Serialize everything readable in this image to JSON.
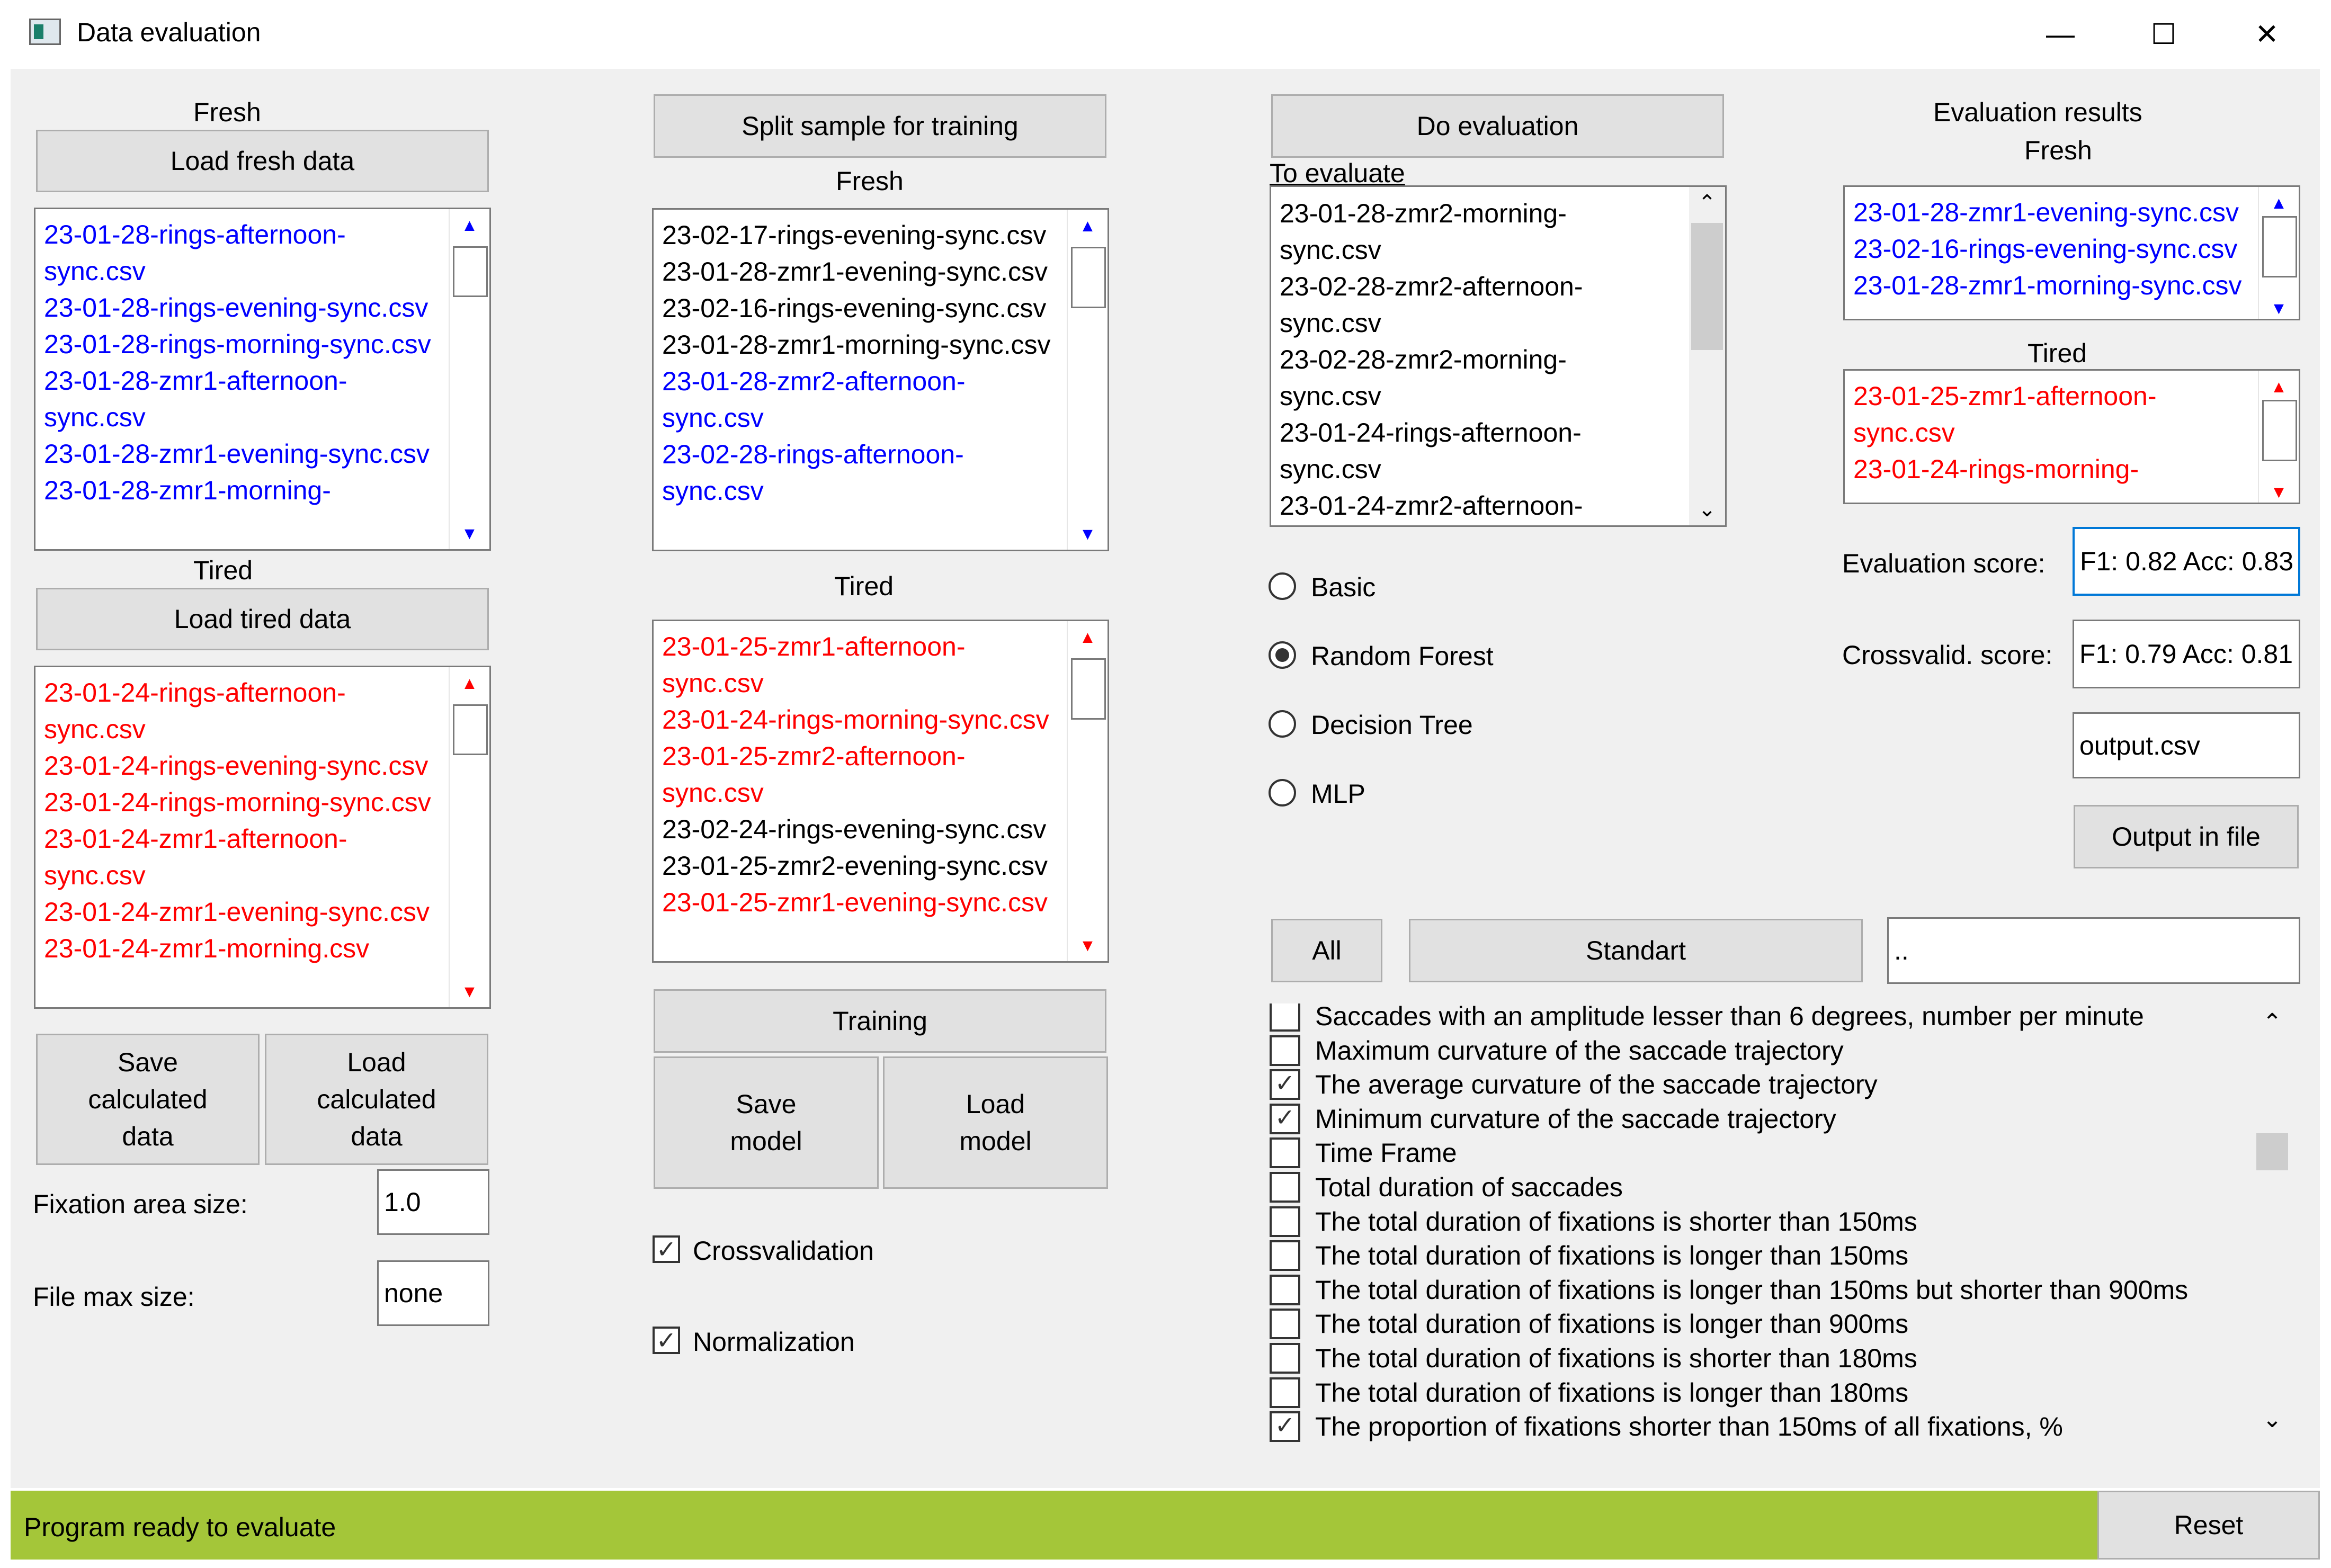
{
  "window": {
    "title": "Data evaluation",
    "controls": {
      "minimize": "—",
      "maximize": "☐",
      "close": "✕"
    }
  },
  "colors": {
    "fresh": "#0000ff",
    "tired": "#ff0000",
    "status_bar": "#a4c639",
    "selected_border": "#0078d7"
  },
  "left": {
    "fresh_label": "Fresh",
    "load_fresh_button": "Load fresh data",
    "fresh_files": [
      "23-01-28-rings-afternoon-sync.csv",
      "23-01-28-rings-evening-sync.csv",
      "23-01-28-rings-morning-sync.csv",
      "23-01-28-zmr1-afternoon-sync.csv",
      "23-01-28-zmr1-evening-sync.csv",
      "23-01-28-zmr1-morning-"
    ],
    "tired_label": "Tired",
    "load_tired_button": "Load tired data",
    "tired_files": [
      "23-01-24-rings-afternoon-sync.csv",
      "23-01-24-rings-evening-sync.csv",
      "23-01-24-rings-morning-sync.csv",
      "23-01-24-zmr1-afternoon-sync.csv",
      "23-01-24-zmr1-evening-sync.csv",
      "23-01-24-zmr1-morning.csv"
    ],
    "save_calculated_button": "Save\ncalculated\ndata",
    "load_calculated_button": "Load\ncalculated\ndata",
    "fixation_area_label": "Fixation area size:",
    "fixation_area_value": "1.0",
    "file_max_label": "File max size:",
    "file_max_value": "none"
  },
  "middle": {
    "split_button": "Split sample for training",
    "fresh_label": "Fresh",
    "fresh_files": [
      {
        "name": "23-02-17-rings-evening-sync.csv",
        "color": "black"
      },
      {
        "name": "23-01-28-zmr1-evening-sync.csv",
        "color": "black"
      },
      {
        "name": "23-02-16-rings-evening-sync.csv",
        "color": "black"
      },
      {
        "name": "23-01-28-zmr1-morning-sync.csv",
        "color": "black"
      },
      {
        "name": "23-01-28-zmr2-afternoon-sync.csv",
        "color": "blue"
      },
      {
        "name": "23-02-28-rings-afternoon-sync.csv",
        "color": "blue"
      }
    ],
    "tired_label": "Tired",
    "tired_files": [
      {
        "name": "23-01-25-zmr1-afternoon-sync.csv",
        "color": "red"
      },
      {
        "name": "23-01-24-rings-morning-sync.csv",
        "color": "red"
      },
      {
        "name": "23-01-25-zmr2-afternoon-sync.csv",
        "color": "red"
      },
      {
        "name": "23-02-24-rings-evening-sync.csv",
        "color": "black"
      },
      {
        "name": "23-01-25-zmr2-evening-sync.csv",
        "color": "black"
      },
      {
        "name": "23-01-25-zmr1-evening-sync.csv",
        "color": "red"
      }
    ],
    "training_button": "Training",
    "save_model_button": "Save\nmodel",
    "load_model_button": "Load\nmodel",
    "crossvalidation_label": "Crossvalidation",
    "crossvalidation_checked": true,
    "normalization_label": "Normalization",
    "normalization_checked": true
  },
  "evaluation": {
    "do_button": "Do evaluation",
    "to_evaluate_label": "To evaluate",
    "files": [
      "23-01-28-zmr2-morning-sync.csv",
      "23-02-28-zmr2-afternoon-sync.csv",
      "23-02-28-zmr2-morning-sync.csv",
      "23-01-24-rings-afternoon-sync.csv",
      "23-01-24-zmr2-afternoon-"
    ],
    "models": [
      {
        "label": "Basic",
        "selected": false
      },
      {
        "label": "Random Forest",
        "selected": true
      },
      {
        "label": "Decision Tree",
        "selected": false
      },
      {
        "label": "MLP",
        "selected": false
      }
    ]
  },
  "results": {
    "title": "Evaluation results",
    "fresh_label": "Fresh",
    "fresh_files": [
      "23-01-28-zmr1-evening-sync.csv",
      "23-02-16-rings-evening-sync.csv",
      "23-01-28-zmr1-morning-sync.csv"
    ],
    "tired_label": "Tired",
    "tired_files": [
      "23-01-25-zmr1-afternoon-sync.csv",
      "23-01-24-rings-morning-"
    ],
    "evaluation_score_label": "Evaluation score:",
    "evaluation_score_value": "F1: 0.82 Acc: 0.83",
    "crossvalid_score_label": "Crossvalid. score:",
    "crossvalid_score_value": "F1: 0.79 Acc: 0.81",
    "output_file_value": "output.csv",
    "output_button": "Output in file"
  },
  "features": {
    "all_button": "All",
    "standart_button": "Standart",
    "filter_value": "..",
    "items": [
      {
        "label": "Saccades with an amplitude lesser than 6 degrees, number per minute",
        "checked": false
      },
      {
        "label": "Maximum curvature of the saccade trajectory",
        "checked": false
      },
      {
        "label": "The average curvature of the saccade trajectory",
        "checked": true
      },
      {
        "label": "Minimum curvature of the saccade trajectory",
        "checked": true
      },
      {
        "label": "Time Frame",
        "checked": false
      },
      {
        "label": "Total duration of saccades",
        "checked": false
      },
      {
        "label": "The total duration of fixations is shorter than 150ms",
        "checked": false
      },
      {
        "label": "The total duration of fixations is longer than 150ms",
        "checked": false
      },
      {
        "label": "The total duration of fixations is longer than 150ms but shorter than 900ms",
        "checked": false
      },
      {
        "label": "The total duration of fixations is longer than 900ms",
        "checked": false
      },
      {
        "label": "The total duration of fixations is shorter than 180ms",
        "checked": false
      },
      {
        "label": "The total duration of fixations is longer than 180ms",
        "checked": false
      },
      {
        "label": "The proportion of fixations shorter than 150ms of all fixations, %",
        "checked": true
      }
    ]
  },
  "status": {
    "text": "Program ready to evaluate",
    "reset_button": "Reset"
  }
}
